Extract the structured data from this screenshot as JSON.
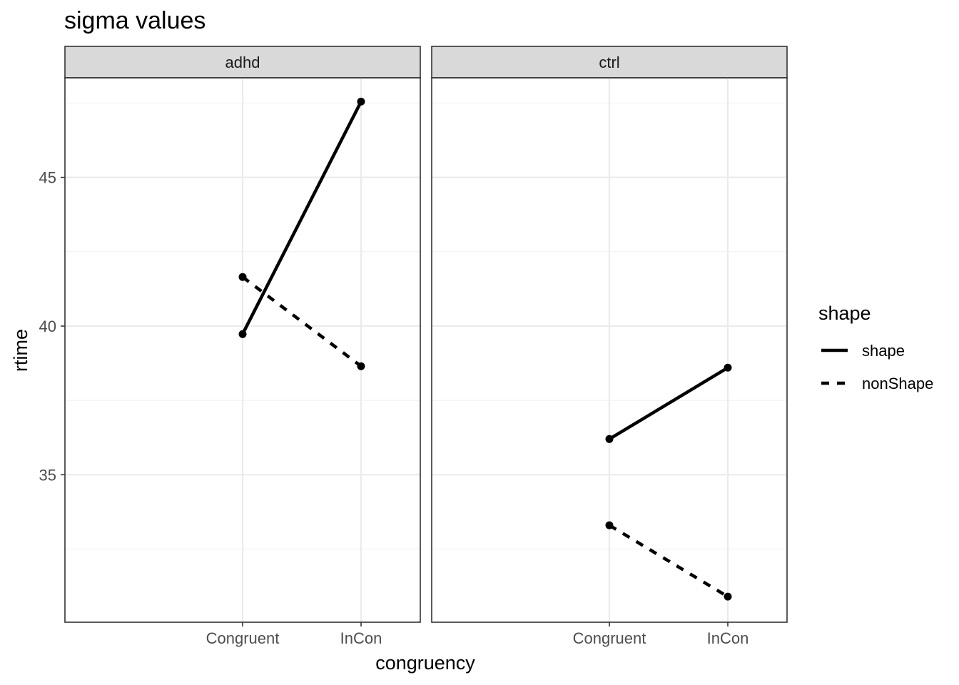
{
  "chart_data": {
    "type": "line",
    "title": "sigma values",
    "xlabel": "congruency",
    "ylabel": "rtime",
    "categories": [
      "Congruent",
      "InCon"
    ],
    "ylim": [
      30.04,
      48.35
    ],
    "y_ticks": [
      35,
      40,
      45
    ],
    "y_tick_labels": [
      "35",
      "40",
      "45"
    ],
    "grid": true,
    "legend": {
      "title": "shape",
      "position": "right",
      "entries": [
        {
          "label": "shape",
          "linetype": "solid"
        },
        {
          "label": "nonShape",
          "linetype": "dashed"
        }
      ]
    },
    "panels": [
      {
        "label": "adhd",
        "series": [
          {
            "name": "shape",
            "linetype": "solid",
            "values": [
              39.73,
              47.55
            ]
          },
          {
            "name": "nonShape",
            "linetype": "dashed",
            "values": [
              41.65,
              38.65
            ]
          }
        ]
      },
      {
        "label": "ctrl",
        "series": [
          {
            "name": "shape",
            "linetype": "solid",
            "values": [
              36.2,
              38.6
            ]
          },
          {
            "name": "nonShape",
            "linetype": "dashed",
            "values": [
              33.3,
              30.9
            ]
          }
        ]
      }
    ],
    "colors": {
      "line": "#000000",
      "grid": "#ebebeb",
      "strip": "#d9d9d9",
      "border": "#333333"
    }
  }
}
